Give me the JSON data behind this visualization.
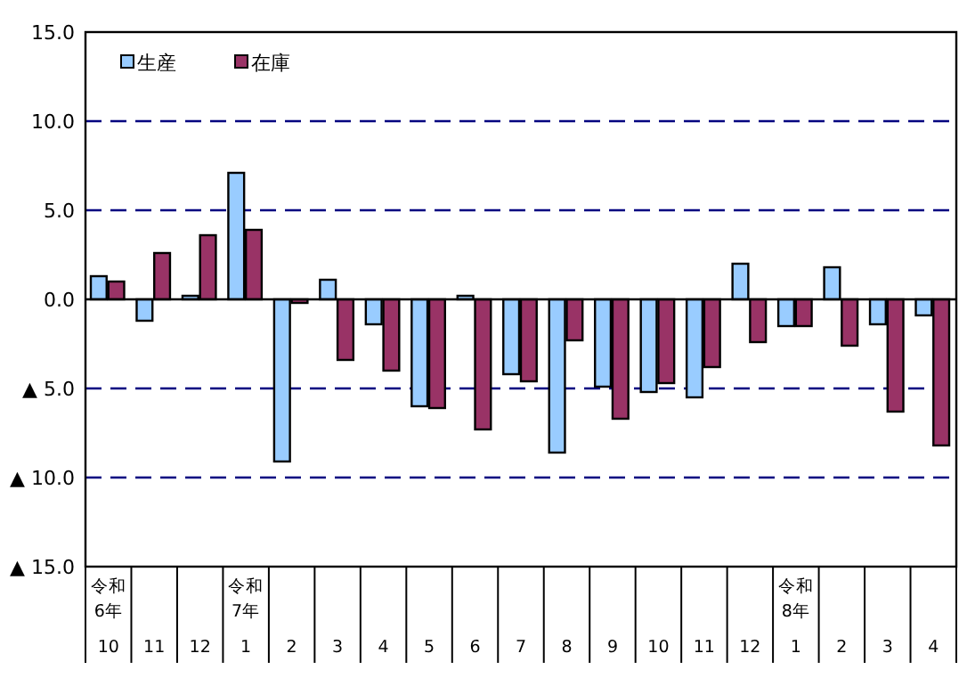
{
  "chart_data": {
    "type": "bar",
    "categories": [
      "令和\n6年\n10",
      "11",
      "12",
      "令和\n7年\n1",
      "2",
      "3",
      "4",
      "5",
      "6",
      "7",
      "8",
      "9",
      "10",
      "11",
      "12",
      "令和\n8年\n1",
      "2",
      "3",
      "4"
    ],
    "series": [
      {
        "name": "生産",
        "color": "#99ccff",
        "values": [
          1.3,
          -1.2,
          0.2,
          7.1,
          -9.1,
          1.1,
          -1.4,
          -6.0,
          0.2,
          -4.2,
          -8.6,
          -4.9,
          -5.2,
          -5.5,
          2.0,
          -1.5,
          1.8,
          -1.4,
          -0.9
        ]
      },
      {
        "name": "在庫",
        "color": "#993366",
        "values": [
          1.0,
          2.6,
          3.6,
          3.9,
          -0.2,
          -3.4,
          -4.0,
          -6.1,
          -7.3,
          -4.6,
          -2.3,
          -6.7,
          -4.7,
          -3.8,
          -2.4,
          -1.5,
          -2.6,
          -6.3,
          -8.2
        ]
      }
    ],
    "ylim": [
      -15,
      15
    ],
    "yticks": [
      {
        "value": 15,
        "label": "15.0"
      },
      {
        "value": 10,
        "label": "10.0"
      },
      {
        "value": 5,
        "label": "5.0"
      },
      {
        "value": 0,
        "label": "0.0"
      },
      {
        "value": -5,
        "label": "▲ 5.0"
      },
      {
        "value": -10,
        "label": "▲ 10.0"
      },
      {
        "value": -15,
        "label": "▲ 15.0"
      }
    ],
    "grid": "y",
    "legend": "top left"
  }
}
